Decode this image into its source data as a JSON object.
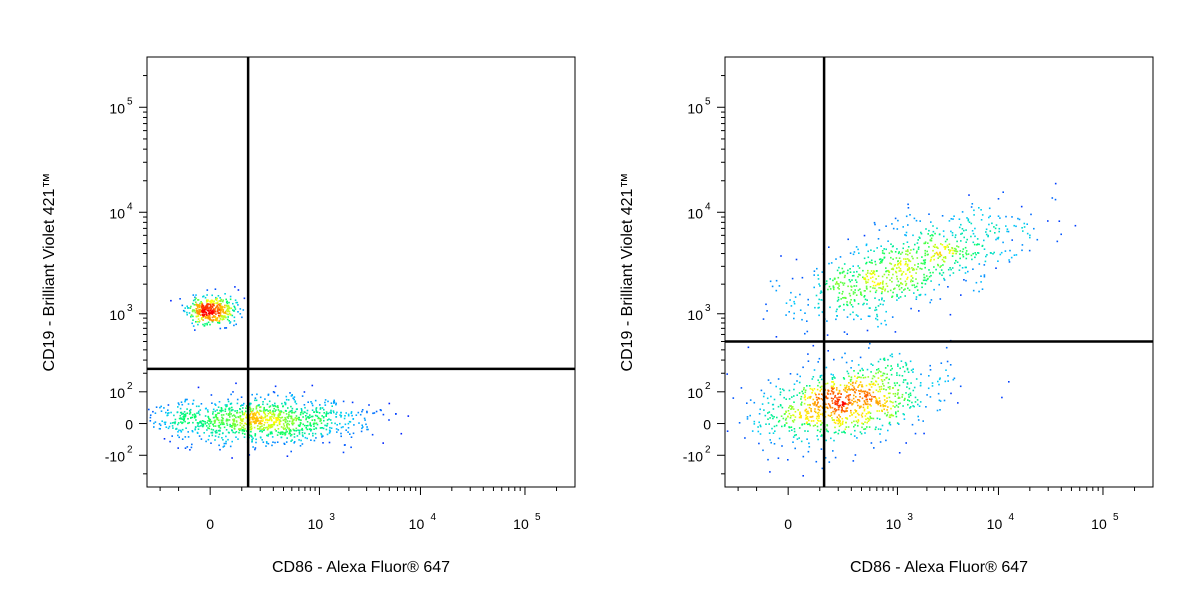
{
  "chart_data": [
    {
      "type": "scatter",
      "subtype": "flow-cytometry-density-dot-plot",
      "xlabel": "CD86 - Alexa Fluor® 647",
      "ylabel": "CD19 - Brilliant Violet 421™",
      "x_scale": "biexponential",
      "y_scale": "biexponential",
      "xlim": [
        -300,
        300000
      ],
      "ylim": [
        -300,
        300000
      ],
      "x_ticks": [
        {
          "value": 0,
          "label": "0"
        },
        {
          "value": 1000,
          "label": "10",
          "sup": "3"
        },
        {
          "value": 10000,
          "label": "10",
          "sup": "4"
        },
        {
          "value": 100000,
          "label": "10",
          "sup": "5"
        }
      ],
      "y_ticks": [
        {
          "value": -100,
          "label": "-10",
          "sup": "2"
        },
        {
          "value": 0,
          "label": "0"
        },
        {
          "value": 100,
          "label": "10",
          "sup": "2"
        },
        {
          "value": 1000,
          "label": "10",
          "sup": "3"
        },
        {
          "value": 10000,
          "label": "10",
          "sup": "4"
        },
        {
          "value": 100000,
          "label": "10",
          "sup": "5"
        }
      ],
      "gates": {
        "x": 130,
        "y": 230
      },
      "populations": [
        {
          "center": [
            0,
            1100
          ],
          "count": 420
        },
        {
          "center": [
            180,
            10
          ],
          "count": 1150
        }
      ],
      "grid": false,
      "legend": "none",
      "colormap": [
        "#0000ff",
        "#00c8ff",
        "#00ff66",
        "#ffff00",
        "#ff8000",
        "#ff0000"
      ]
    },
    {
      "type": "scatter",
      "subtype": "flow-cytometry-density-dot-plot",
      "xlabel": "CD86 - Alexa Fluor® 647",
      "ylabel": "CD19 - Brilliant Violet 421™",
      "x_scale": "biexponential",
      "y_scale": "biexponential",
      "xlim": [
        -300,
        300000
      ],
      "ylim": [
        -300,
        300000
      ],
      "x_ticks": [
        {
          "value": 0,
          "label": "0"
        },
        {
          "value": 1000,
          "label": "10",
          "sup": "3"
        },
        {
          "value": 10000,
          "label": "10",
          "sup": "4"
        },
        {
          "value": 100000,
          "label": "10",
          "sup": "5"
        }
      ],
      "y_ticks": [
        {
          "value": -100,
          "label": "-10",
          "sup": "2"
        },
        {
          "value": 0,
          "label": "0"
        },
        {
          "value": 100,
          "label": "10",
          "sup": "2"
        },
        {
          "value": 1000,
          "label": "10",
          "sup": "3"
        },
        {
          "value": 10000,
          "label": "10",
          "sup": "4"
        },
        {
          "value": 100000,
          "label": "10",
          "sup": "5"
        }
      ],
      "gates": {
        "x": 120,
        "y": 500
      },
      "populations": [
        {
          "center": [
            1200,
            3000
          ],
          "count": 850
        },
        {
          "center": [
            250,
            60
          ],
          "count": 1000
        }
      ],
      "grid": false,
      "legend": "none",
      "colormap": [
        "#0000ff",
        "#00c8ff",
        "#00ff66",
        "#ffff00",
        "#ff8000",
        "#ff0000"
      ]
    }
  ]
}
